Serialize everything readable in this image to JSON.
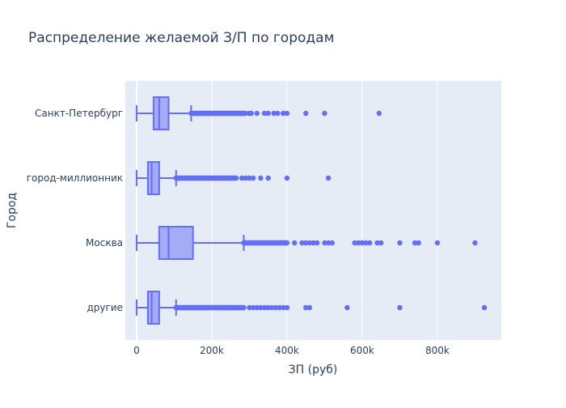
{
  "chart_data": {
    "type": "box",
    "orientation": "horizontal",
    "title": "Распределение желаемой З/П по городам",
    "xlabel": "ЗП (руб)",
    "ylabel": "Город",
    "xlim": [
      -30000,
      970000
    ],
    "x_ticks": [
      {
        "value": 0,
        "label": "0"
      },
      {
        "value": 200000,
        "label": "200k"
      },
      {
        "value": 400000,
        "label": "400k"
      },
      {
        "value": 600000,
        "label": "600k"
      },
      {
        "value": 800000,
        "label": "800k"
      }
    ],
    "grid": true,
    "colors": {
      "plot_bg": "#e5ecf6",
      "grid": "#ffffff",
      "series": "#636efa",
      "box_fill": "#a4abf7",
      "text": "#2a3f5f"
    },
    "categories": [
      "Санкт-Петербург",
      "город-миллионник",
      "Москва",
      "другие"
    ],
    "boxes": [
      {
        "category": "Санкт-Петербург",
        "min": 0,
        "q1": 45000,
        "median": 60000,
        "q3": 85000,
        "max": 145000,
        "outliers_dense_range": [
          145000,
          285000
        ],
        "outliers": [
          290000,
          300000,
          305000,
          320000,
          340000,
          350000,
          365000,
          375000,
          390000,
          400000,
          450000,
          500000,
          645000
        ]
      },
      {
        "category": "город-миллионник",
        "min": 0,
        "q1": 30000,
        "median": 40000,
        "q3": 60000,
        "max": 105000,
        "outliers_dense_range": [
          105000,
          265000
        ],
        "outliers": [
          280000,
          290000,
          300000,
          310000,
          330000,
          350000,
          400000,
          510000
        ]
      },
      {
        "category": "Москва",
        "min": 0,
        "q1": 60000,
        "median": 85000,
        "q3": 150000,
        "max": 285000,
        "outliers_dense_range": [
          285000,
          400000
        ],
        "outliers": [
          420000,
          440000,
          450000,
          460000,
          470000,
          480000,
          500000,
          510000,
          520000,
          580000,
          590000,
          600000,
          610000,
          620000,
          640000,
          650000,
          700000,
          740000,
          750000,
          800000,
          900000
        ]
      },
      {
        "category": "другие",
        "min": 0,
        "q1": 30000,
        "median": 40000,
        "q3": 60000,
        "max": 105000,
        "outliers_dense_range": [
          105000,
          285000
        ],
        "outliers": [
          300000,
          310000,
          320000,
          330000,
          340000,
          350000,
          360000,
          370000,
          380000,
          390000,
          400000,
          450000,
          460000,
          560000,
          700000,
          925000
        ]
      }
    ]
  }
}
